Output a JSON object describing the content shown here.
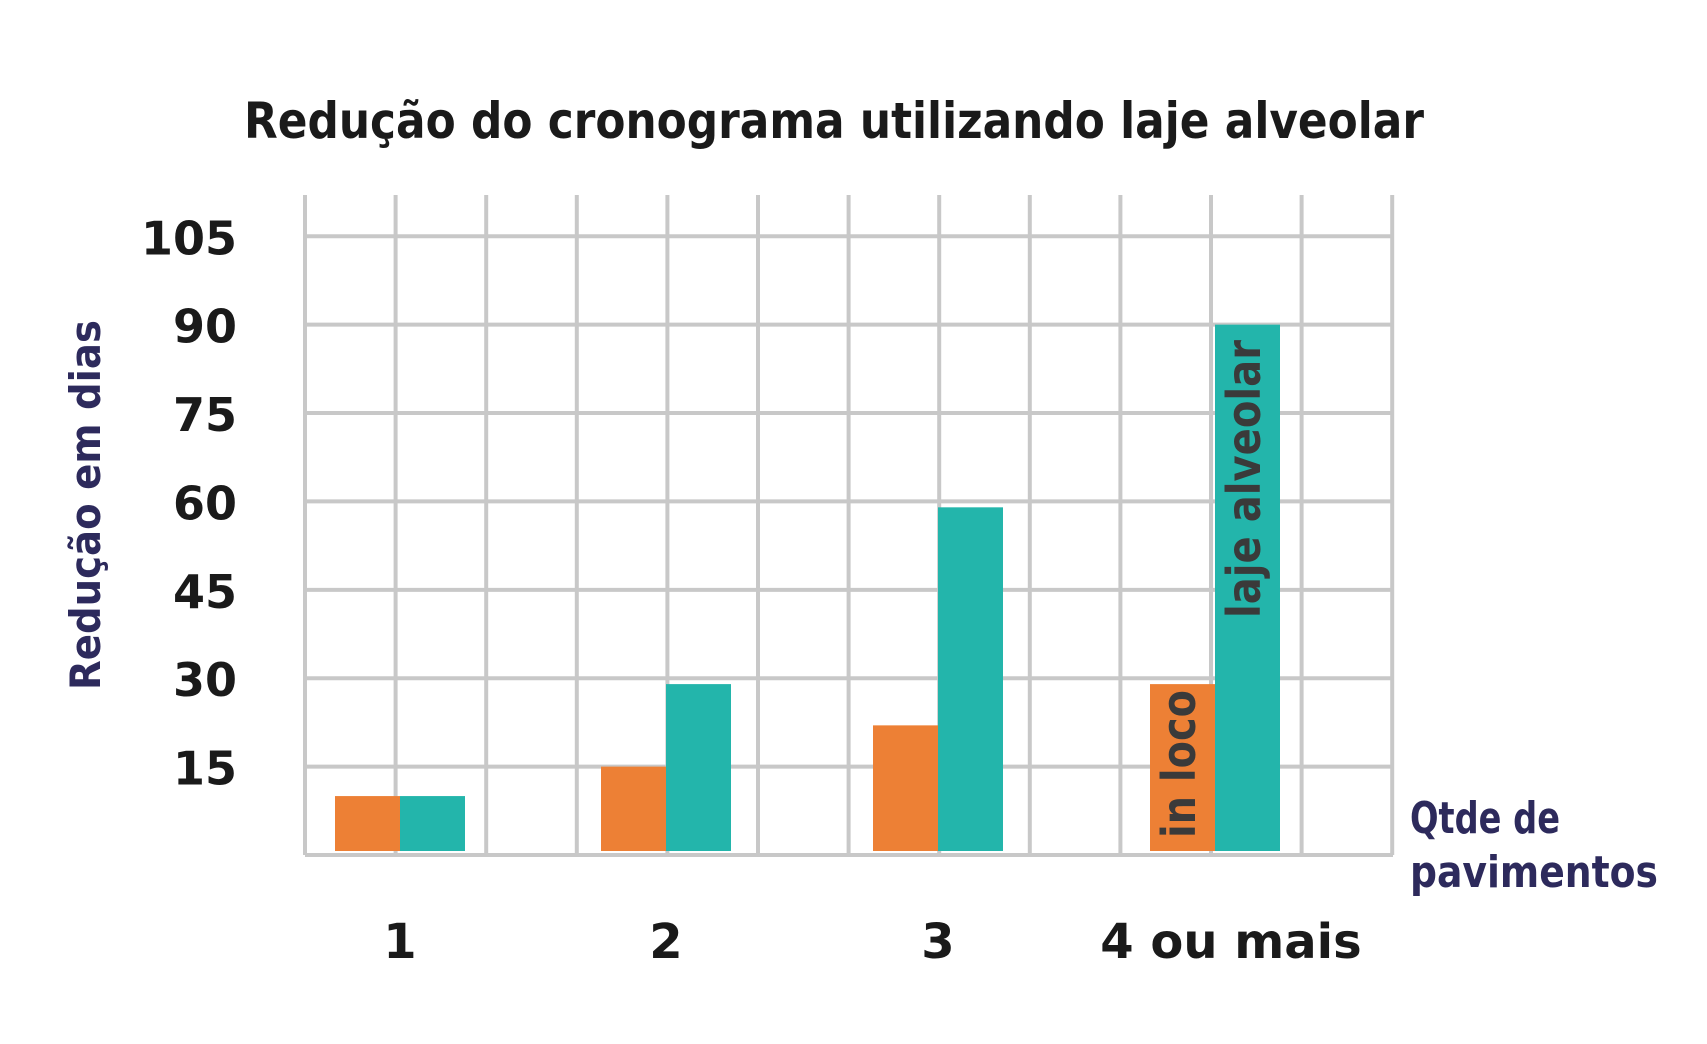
{
  "chart_data": {
    "type": "bar",
    "title": "Redução do cronograma utilizando laje alveolar",
    "ylabel": "Redução em dias",
    "xlabel_lines": [
      "Qtde de",
      "pavimentos"
    ],
    "categories": [
      "1",
      "2",
      "3",
      "4 ou mais"
    ],
    "yticks": [
      "105",
      "90",
      "75",
      "60",
      "45",
      "30",
      "15"
    ],
    "ylim": [
      0,
      112
    ],
    "grid": true,
    "series": [
      {
        "name": "in loco",
        "color": "#ed8035",
        "values": [
          10,
          15,
          22,
          29
        ]
      },
      {
        "name": "laje alveolar",
        "color": "#23b5ab",
        "values": [
          10,
          29,
          59,
          90
        ]
      }
    ]
  }
}
